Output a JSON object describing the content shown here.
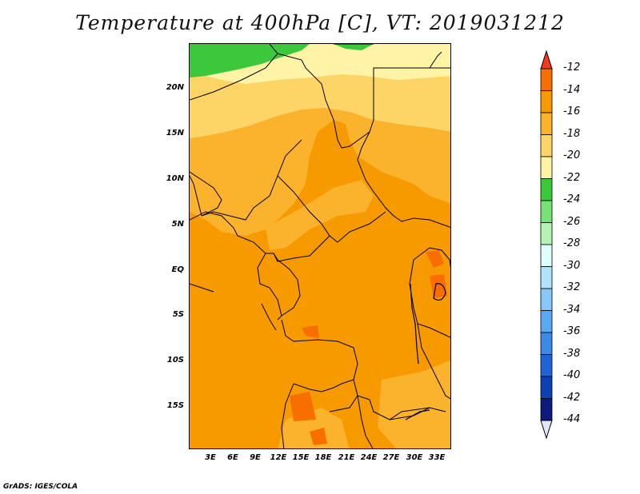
{
  "title": "Temperature at 400hPa [C], VT: 2019031212",
  "credit": "GrADS: IGES/COLA",
  "lat_ticks": [
    "20N",
    "15N",
    "10N",
    "5N",
    "EQ",
    "5S",
    "10S",
    "15S"
  ],
  "lon_ticks": [
    "3E",
    "6E",
    "9E",
    "12E",
    "15E",
    "18E",
    "21E",
    "24E",
    "27E",
    "30E",
    "33E"
  ],
  "colorbar": {
    "levels": [
      "-12",
      "-14",
      "-16",
      "-18",
      "-20",
      "-22",
      "-24",
      "-26",
      "-28",
      "-30",
      "-32",
      "-34",
      "-36",
      "-38",
      "-40",
      "-42",
      "-44"
    ],
    "colors": [
      "#f03c1e",
      "#f86e00",
      "#f79a00",
      "#fbb32e",
      "#fdd567",
      "#fff3a5",
      "#3cc83c",
      "#78e278",
      "#b4f3b4",
      "#e1fefe",
      "#b0e4fb",
      "#86c8f7",
      "#5aa9f1",
      "#3d8ae6",
      "#2163d4",
      "#0c40b4",
      "#0a1a7d"
    ],
    "top_arrow_color": "#f03c1e",
    "bottom_arrow_color": "#e6e6fa"
  },
  "map_fill": {
    "background_color": "#f79a00",
    "band_colors": {
      "gt_minus_12": "#f86e00",
      "minus_16_to_14": "#fbb32e",
      "minus_18_to_16": "#fdd567",
      "minus_20_to_18": "#fff3a5",
      "minus_24_to_22": "#3cc83c"
    }
  }
}
